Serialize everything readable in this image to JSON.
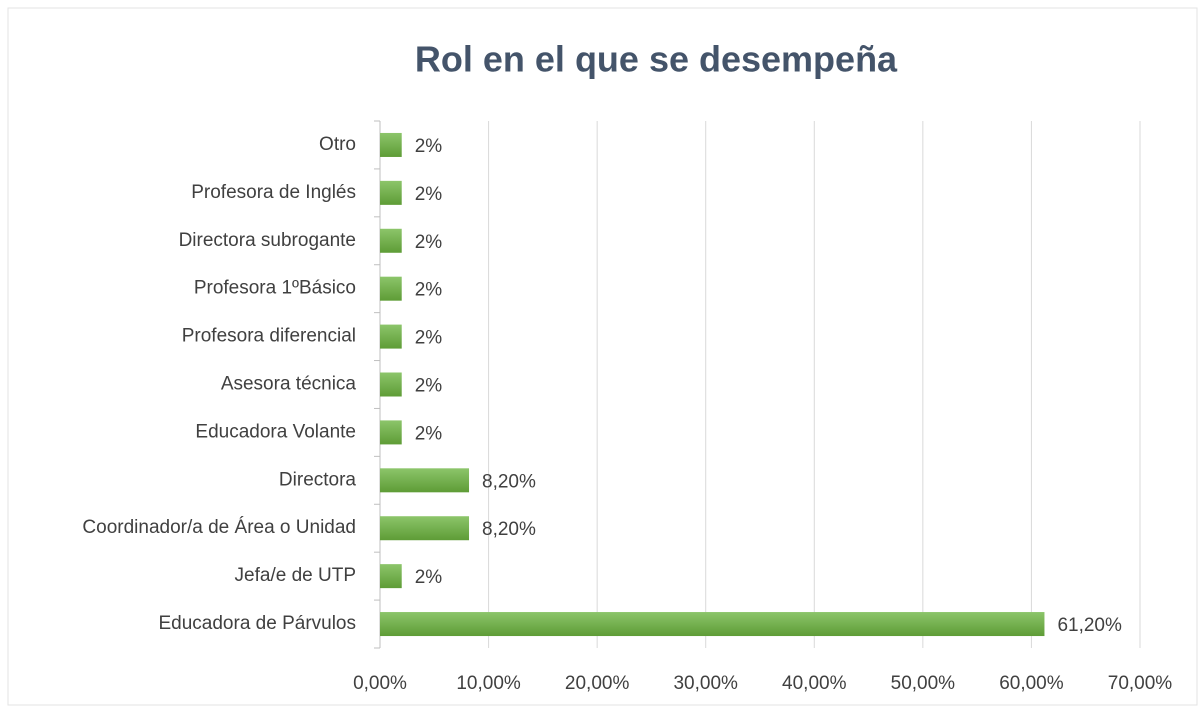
{
  "chart_data": {
    "type": "bar",
    "orientation": "horizontal",
    "title": "Rol en el que se desempeña",
    "categories": [
      "Otro",
      "Profesora de Inglés",
      "Directora subrogante",
      "Profesora 1ºBásico",
      "Profesora diferencial",
      "Asesora técnica",
      "Educadora Volante",
      "Directora",
      "Coordinador/a de Área o Unidad",
      "Jefa/e de UTP",
      "Educadora de Párvulos"
    ],
    "values": [
      2,
      2,
      2,
      2,
      2,
      2,
      2,
      8.2,
      8.2,
      2,
      61.2
    ],
    "value_labels": [
      "2%",
      "2%",
      "2%",
      "2%",
      "2%",
      "2%",
      "2%",
      "8,20%",
      "8,20%",
      "2%",
      "61,20%"
    ],
    "color": "#70ad47",
    "xlim": [
      0,
      70
    ],
    "xticks": [
      {
        "value": 0,
        "label": "0,00%"
      },
      {
        "value": 10,
        "label": "10,00%"
      },
      {
        "value": 20,
        "label": "20,00%"
      },
      {
        "value": 30,
        "label": "30,00%"
      },
      {
        "value": 40,
        "label": "40,00%"
      },
      {
        "value": 50,
        "label": "50,00%"
      },
      {
        "value": 60,
        "label": "60,00%"
      },
      {
        "value": 70,
        "label": "70,00%"
      }
    ],
    "grid": true
  }
}
